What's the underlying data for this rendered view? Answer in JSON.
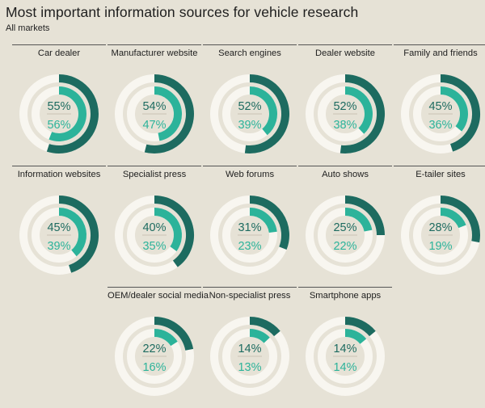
{
  "title": "Most important information sources for vehicle research",
  "subtitle": "All markets",
  "colors": {
    "background": "#e6e2d6",
    "track": "#f8f6f0",
    "outer_ring": "#1d6b60",
    "inner_ring": "#2cb39a",
    "divider": "#c9c2b4"
  },
  "chart_data": {
    "type": "radial-bar",
    "title": "Most important information sources for vehicle research",
    "subtitle": "All markets",
    "unit": "%",
    "categories": [
      "Car dealer",
      "Manufacturer website",
      "Search engines",
      "Dealer website",
      "Family and friends",
      "Information websites",
      "Specialist press",
      "Web forums",
      "Auto shows",
      "E-tailer sites",
      "OEM/dealer social media",
      "Non-specialist press",
      "Smartphone apps"
    ],
    "series": [
      {
        "values": [
          55,
          54,
          52,
          52,
          45,
          45,
          40,
          31,
          25,
          28,
          22,
          14,
          14
        ]
      },
      {
        "values": [
          56,
          47,
          39,
          38,
          36,
          39,
          35,
          23,
          22,
          19,
          16,
          13,
          14
        ]
      }
    ],
    "items": [
      {
        "label": "Car dealer",
        "outer": 55,
        "inner": 56
      },
      {
        "label": "Manufacturer website",
        "outer": 54,
        "inner": 47
      },
      {
        "label": "Search engines",
        "outer": 52,
        "inner": 39
      },
      {
        "label": "Dealer website",
        "outer": 52,
        "inner": 38
      },
      {
        "label": "Family and friends",
        "outer": 45,
        "inner": 36
      },
      {
        "label": "Information websites",
        "outer": 45,
        "inner": 39
      },
      {
        "label": "Specialist press",
        "outer": 40,
        "inner": 35
      },
      {
        "label": "Web forums",
        "outer": 31,
        "inner": 23
      },
      {
        "label": "Auto shows",
        "outer": 25,
        "inner": 22
      },
      {
        "label": "E-tailer sites",
        "outer": 28,
        "inner": 19
      },
      {
        "label": "OEM/dealer social media",
        "outer": 22,
        "inner": 16
      },
      {
        "label": "Non-specialist press",
        "outer": 14,
        "inner": 13
      },
      {
        "label": "Smartphone apps",
        "outer": 14,
        "inner": 14
      }
    ]
  }
}
